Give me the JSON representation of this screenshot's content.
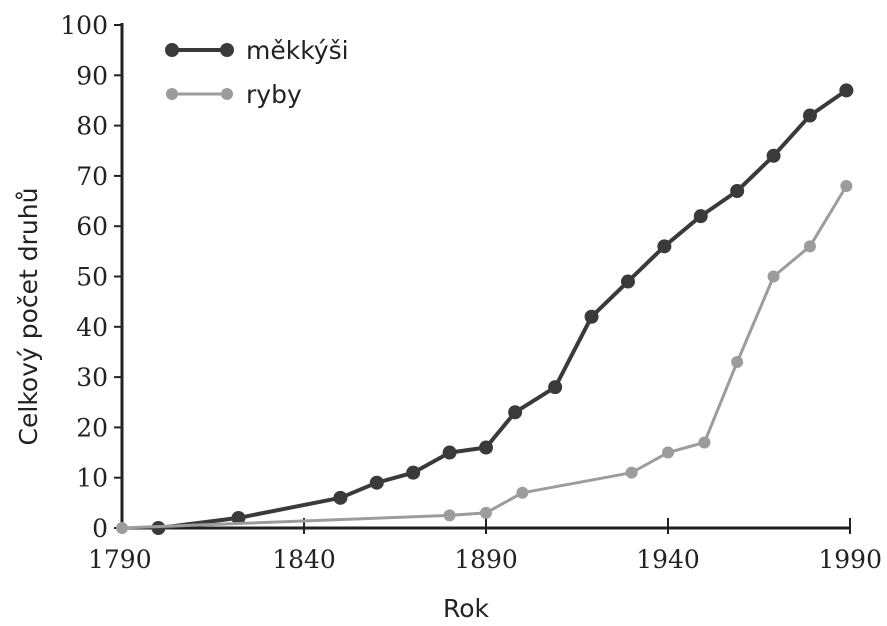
{
  "chart_data": {
    "type": "line",
    "xlabel": "Rok",
    "ylabel": "Celkový počet druhů",
    "xlim": [
      1790,
      1990
    ],
    "ylim": [
      0,
      100
    ],
    "x_ticks": [
      "1790",
      "1840",
      "1890",
      "1940",
      "1990"
    ],
    "y_ticks": [
      "0",
      "10",
      "20",
      "30",
      "40",
      "50",
      "60",
      "70",
      "80",
      "90",
      "100"
    ],
    "grid": false,
    "legend_position": "top-left",
    "series": [
      {
        "name": "měkkýši",
        "color": "#3a3a3a",
        "points": [
          [
            1800,
            0
          ],
          [
            1822,
            2
          ],
          [
            1850,
            6
          ],
          [
            1860,
            9
          ],
          [
            1870,
            11
          ],
          [
            1880,
            15
          ],
          [
            1890,
            16
          ],
          [
            1898,
            23
          ],
          [
            1909,
            28
          ],
          [
            1919,
            42
          ],
          [
            1929,
            49
          ],
          [
            1939,
            56
          ],
          [
            1949,
            62
          ],
          [
            1959,
            67
          ],
          [
            1969,
            74
          ],
          [
            1979,
            82
          ],
          [
            1989,
            87
          ]
        ]
      },
      {
        "name": "ryby",
        "color": "#9c9c9c",
        "points": [
          [
            1790,
            0
          ],
          [
            1880,
            2.5
          ],
          [
            1890,
            3
          ],
          [
            1900,
            7
          ],
          [
            1930,
            11
          ],
          [
            1940,
            15
          ],
          [
            1950,
            17
          ],
          [
            1959,
            33
          ],
          [
            1969,
            50
          ],
          [
            1979,
            56
          ],
          [
            1989,
            68
          ]
        ]
      }
    ]
  }
}
